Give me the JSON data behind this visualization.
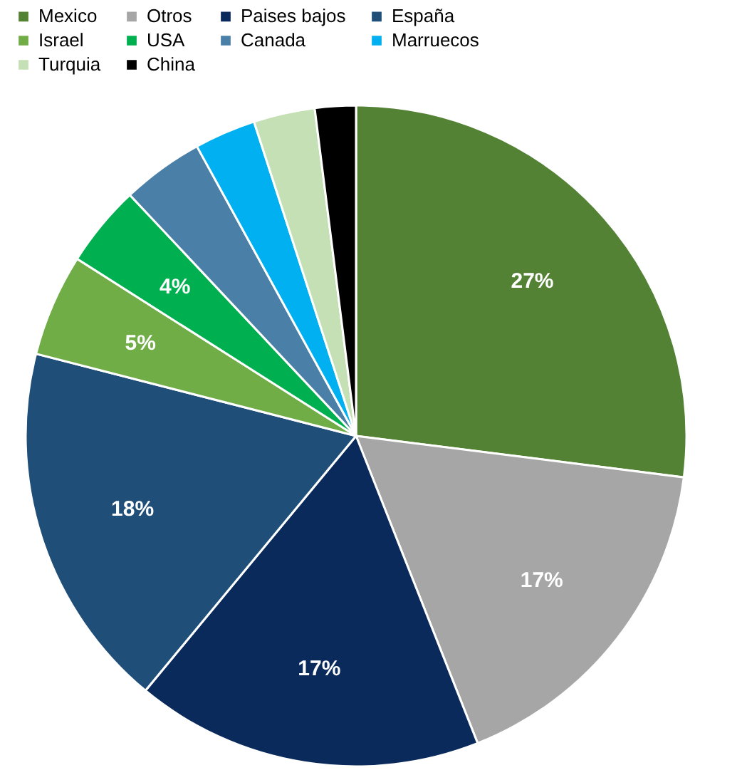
{
  "chart_data": {
    "type": "pie",
    "categories": [
      "Mexico",
      "Otros",
      "Paises bajos",
      "España",
      "Israel",
      "USA",
      "Canada",
      "Marruecos",
      "Turquia",
      "China"
    ],
    "values": [
      27,
      17,
      17,
      18,
      5,
      4,
      4,
      3,
      3,
      2
    ],
    "colors": [
      "#548235",
      "#a6a6a6",
      "#0b2a5c",
      "#1f4e79",
      "#70ad47",
      "#00b050",
      "#4a7fa8",
      "#00b0f0",
      "#c5e0b4",
      "#000000"
    ],
    "value_labels": [
      "27%",
      "17%",
      "17%",
      "18%",
      "5%",
      "4%",
      null,
      null,
      null,
      null
    ],
    "legend": "top"
  }
}
